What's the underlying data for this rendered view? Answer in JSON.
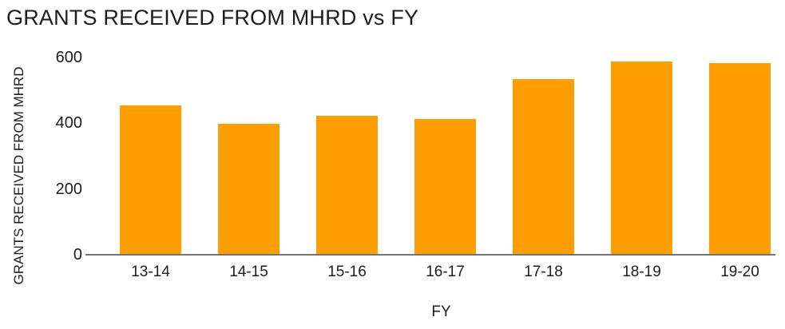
{
  "chart_data": {
    "type": "bar",
    "title": "GRANTS RECEIVED FROM MHRD vs FY",
    "xlabel": "FY",
    "ylabel": "GRANTS RECEIVED FROM MHRD",
    "categories": [
      "13-14",
      "14-15",
      "15-16",
      "16-17",
      "17-18",
      "18-19",
      "19-20"
    ],
    "values": [
      450,
      395,
      420,
      410,
      530,
      585,
      580
    ],
    "yticks": [
      0,
      200,
      400,
      600
    ],
    "ylim": [
      0,
      600
    ],
    "grid": false,
    "legend": false,
    "colors": {
      "bar": "#ff9e00",
      "axis": "#757575",
      "text": "#1d1d1d"
    }
  }
}
